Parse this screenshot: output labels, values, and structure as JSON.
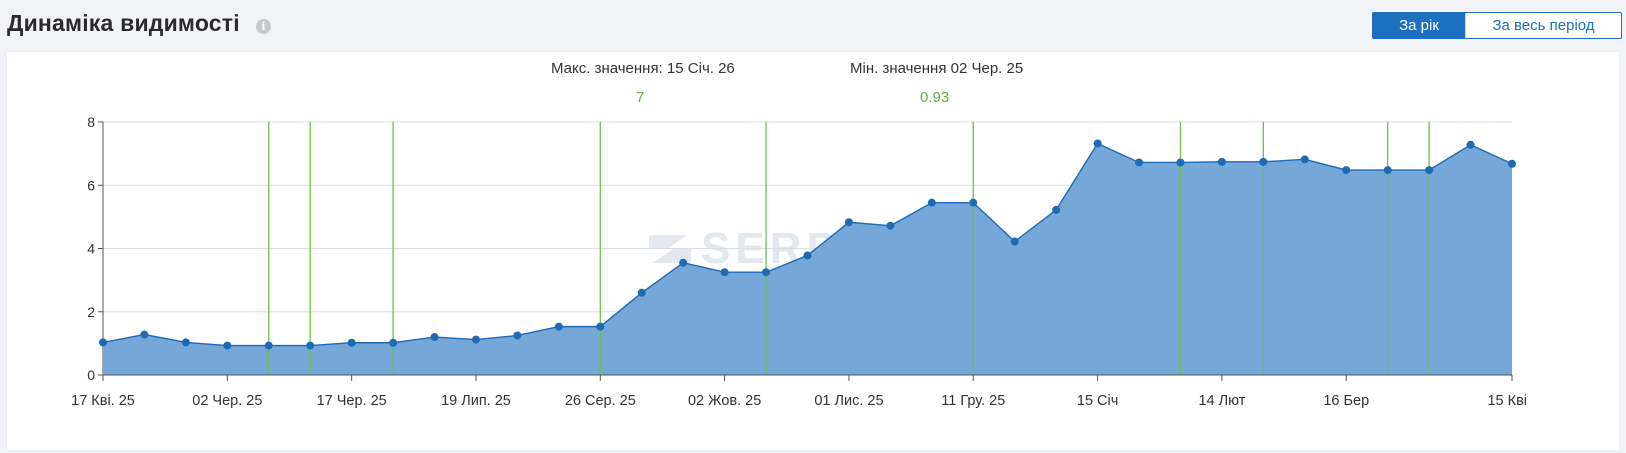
{
  "header": {
    "title": "Динаміка видимості",
    "info_icon": "info-icon",
    "toggle": {
      "year_label": "За рік",
      "all_label": "За весь період",
      "active": "year"
    }
  },
  "stats": {
    "max_label": "Макс. значення: 15 Січ. 26",
    "max_value": "7",
    "min_label": "Мін. значення 02 Чер. 25",
    "min_value": "0.93"
  },
  "watermark": "SERPSTAT",
  "colors": {
    "accent": "#1d6fbf",
    "area_fill": "#75a8d8",
    "line": "#1e6ab4",
    "marker_line": "#6fbf4f",
    "stat_value": "#63ad3f"
  },
  "chart_data": {
    "type": "area",
    "title": "",
    "xlabel": "",
    "ylabel": "",
    "ylim": [
      0,
      8
    ],
    "yticks": [
      0,
      2,
      4,
      6,
      8
    ],
    "grid": true,
    "x_tick_labels": [
      "17 Кві. 25",
      "02 Чер. 25",
      "17 Чер. 25",
      "19 Лип. 25",
      "26 Сер. 25",
      "02 Жов. 25",
      "01 Лис. 25",
      "11 Гру. 25",
      "15 Січ",
      "14 Лют",
      "16 Бер",
      "15 Кві"
    ],
    "x_tick_positions": [
      0,
      3,
      6,
      9,
      12,
      15,
      18,
      21,
      24,
      27,
      30,
      34
    ],
    "series": [
      {
        "values": [
          1.03,
          1.28,
          1.03,
          0.93,
          0.93,
          0.93,
          1.02,
          1.02,
          1.2,
          1.12,
          1.25,
          1.53,
          1.53,
          2.6,
          3.55,
          3.25,
          3.25,
          3.78,
          4.83,
          4.72,
          5.45,
          5.45,
          4.22,
          5.22,
          7.32,
          6.72,
          6.72,
          6.74,
          6.74,
          6.82,
          6.48,
          6.48,
          6.48,
          7.28,
          6.68
        ]
      }
    ],
    "marker_lines_at": [
      4,
      5,
      7,
      12,
      16,
      21,
      26,
      28,
      31,
      32
    ]
  }
}
